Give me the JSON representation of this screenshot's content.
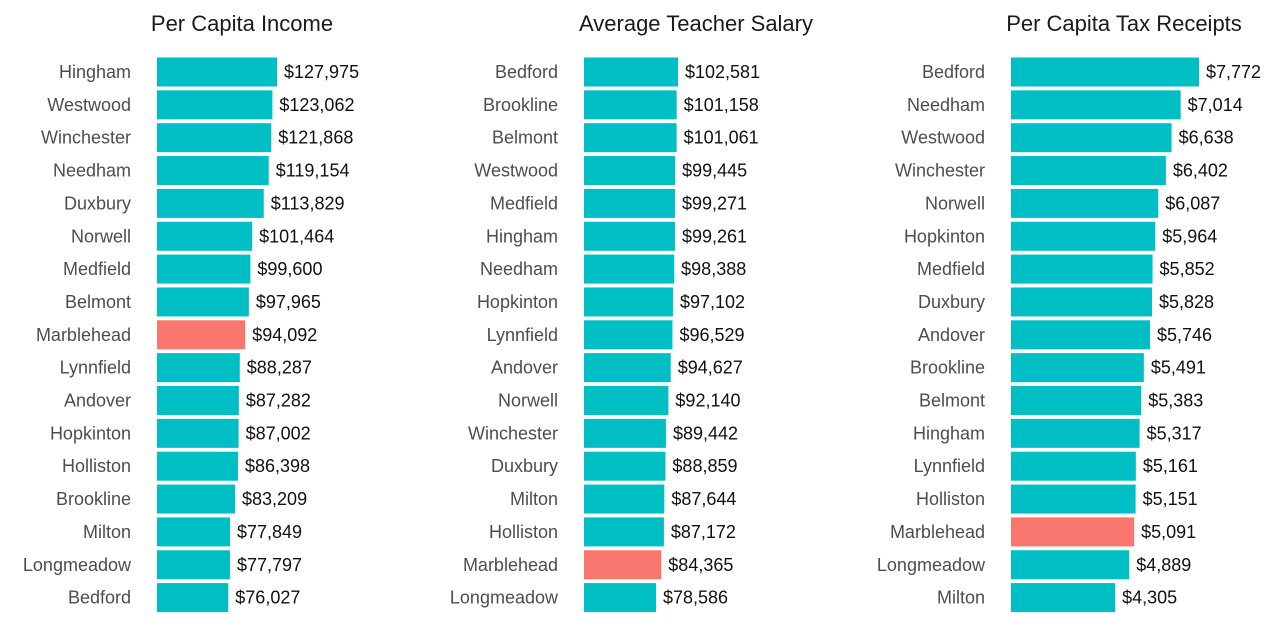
{
  "colors": {
    "bar": "#00BFC4",
    "highlight": "#F8766D"
  },
  "highlight_category": "Marblehead",
  "chart_data": [
    {
      "type": "bar",
      "orientation": "horizontal",
      "title": "Per Capita Income",
      "categories": [
        "Hingham",
        "Westwood",
        "Winchester",
        "Needham",
        "Duxbury",
        "Norwell",
        "Medfield",
        "Belmont",
        "Marblehead",
        "Lynnfield",
        "Andover",
        "Hopkinton",
        "Holliston",
        "Brookline",
        "Milton",
        "Longmeadow",
        "Bedford"
      ],
      "values": [
        127975,
        123062,
        121868,
        119154,
        113829,
        101464,
        99600,
        97965,
        94092,
        88287,
        87282,
        87002,
        86398,
        83209,
        77849,
        77797,
        76027
      ],
      "value_labels": [
        "$127,975",
        "$123,062",
        "$121,868",
        "$119,154",
        "$113,829",
        "$101,464",
        "$99,600",
        "$97,965",
        "$94,092",
        "$88,287",
        "$87,282",
        "$87,002",
        "$86,398",
        "$83,209",
        "$77,849",
        "$77,797",
        "$76,027"
      ],
      "grid": false,
      "legend": "none"
    },
    {
      "type": "bar",
      "orientation": "horizontal",
      "title": "Average Teacher Salary",
      "categories": [
        "Bedford",
        "Brookline",
        "Belmont",
        "Westwood",
        "Medfield",
        "Hingham",
        "Needham",
        "Hopkinton",
        "Lynnfield",
        "Andover",
        "Norwell",
        "Winchester",
        "Duxbury",
        "Milton",
        "Holliston",
        "Marblehead",
        "Longmeadow"
      ],
      "values": [
        102581,
        101158,
        101061,
        99445,
        99271,
        99261,
        98388,
        97102,
        96529,
        94627,
        92140,
        89442,
        88859,
        87644,
        87172,
        84365,
        78586
      ],
      "value_labels": [
        "$102,581",
        "$101,158",
        "$101,061",
        "$99,445",
        "$99,271",
        "$99,261",
        "$98,388",
        "$97,102",
        "$96,529",
        "$94,627",
        "$92,140",
        "$89,442",
        "$88,859",
        "$87,644",
        "$87,172",
        "$84,365",
        "$78,586"
      ],
      "grid": false,
      "legend": "none"
    },
    {
      "type": "bar",
      "orientation": "horizontal",
      "title": "Per Capita Tax Receipts",
      "categories": [
        "Bedford",
        "Needham",
        "Westwood",
        "Winchester",
        "Norwell",
        "Hopkinton",
        "Medfield",
        "Duxbury",
        "Andover",
        "Brookline",
        "Belmont",
        "Hingham",
        "Lynnfield",
        "Holliston",
        "Marblehead",
        "Longmeadow",
        "Milton"
      ],
      "values": [
        7772,
        7014,
        6638,
        6402,
        6087,
        5964,
        5852,
        5828,
        5746,
        5491,
        5383,
        5317,
        5161,
        5151,
        5091,
        4889,
        4305
      ],
      "value_labels": [
        "$7,772",
        "$7,014",
        "$6,638",
        "$6,402",
        "$6,087",
        "$5,964",
        "$5,852",
        "$5,828",
        "$5,746",
        "$5,491",
        "$5,383",
        "$5,317",
        "$5,161",
        "$5,151",
        "$5,091",
        "$4,889",
        "$4,305"
      ],
      "grid": false,
      "legend": "none"
    }
  ]
}
